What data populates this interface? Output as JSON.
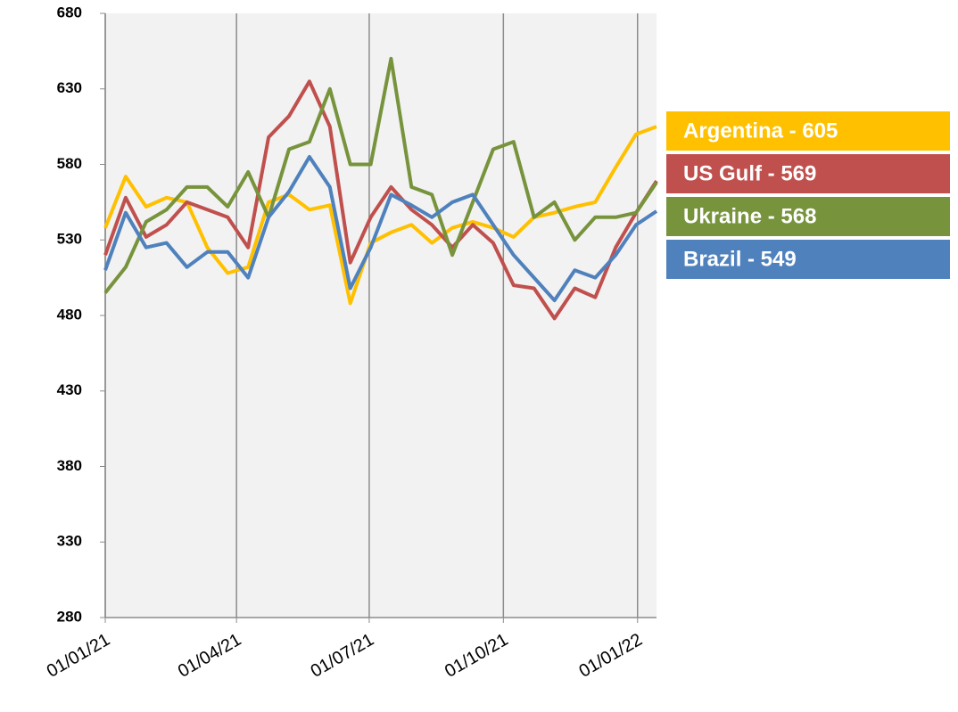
{
  "chart_data": {
    "type": "line",
    "x": [
      "2021-01-01",
      "2021-01-15",
      "2021-01-29",
      "2021-02-12",
      "2021-02-26",
      "2021-03-12",
      "2021-03-26",
      "2021-04-09",
      "2021-04-23",
      "2021-05-07",
      "2021-05-21",
      "2021-06-04",
      "2021-06-18",
      "2021-07-02",
      "2021-07-16",
      "2021-07-30",
      "2021-08-13",
      "2021-08-27",
      "2021-09-10",
      "2021-09-24",
      "2021-10-08",
      "2021-10-22",
      "2021-11-05",
      "2021-11-19",
      "2021-12-03",
      "2021-12-17",
      "2021-12-31",
      "2022-01-14"
    ],
    "series": [
      {
        "name": "Argentina - 605",
        "color": "#ffc000",
        "values": [
          538,
          572,
          552,
          558,
          555,
          525,
          508,
          512,
          555,
          560,
          550,
          553,
          488,
          528,
          535,
          540,
          528,
          538,
          542,
          538,
          532,
          545,
          548,
          552,
          555,
          578,
          600,
          605
        ]
      },
      {
        "name": "US Gulf - 569",
        "color": "#c0504d",
        "values": [
          520,
          558,
          532,
          540,
          555,
          550,
          545,
          525,
          598,
          612,
          635,
          605,
          515,
          545,
          565,
          550,
          540,
          525,
          540,
          528,
          500,
          498,
          478,
          498,
          492,
          525,
          548,
          569
        ]
      },
      {
        "name": "Ukraine - 568",
        "color": "#77933c",
        "values": [
          495,
          512,
          542,
          550,
          565,
          565,
          552,
          575,
          545,
          590,
          595,
          630,
          580,
          580,
          650,
          565,
          560,
          520,
          555,
          590,
          595,
          545,
          555,
          530,
          545,
          545,
          548,
          568
        ]
      },
      {
        "name": "Brazil - 549",
        "color": "#4f81bd",
        "values": [
          510,
          548,
          525,
          528,
          512,
          522,
          522,
          505,
          545,
          562,
          585,
          565,
          498,
          525,
          560,
          553,
          545,
          555,
          560,
          540,
          520,
          505,
          490,
          510,
          505,
          520,
          540,
          549
        ]
      }
    ],
    "xlim": [
      "2021-01-01",
      "2022-01-14"
    ],
    "xticks": [
      {
        "value": "2021-01-01",
        "label": "01/01/21"
      },
      {
        "value": "2021-04-01",
        "label": "01/04/21"
      },
      {
        "value": "2021-07-01",
        "label": "01/07/21"
      },
      {
        "value": "2021-10-01",
        "label": "01/10/21"
      },
      {
        "value": "2022-01-01",
        "label": "01/01/22"
      }
    ],
    "ylim": [
      280,
      680
    ],
    "yticks": [
      280,
      330,
      380,
      430,
      480,
      530,
      580,
      630,
      680
    ],
    "grid": true
  }
}
